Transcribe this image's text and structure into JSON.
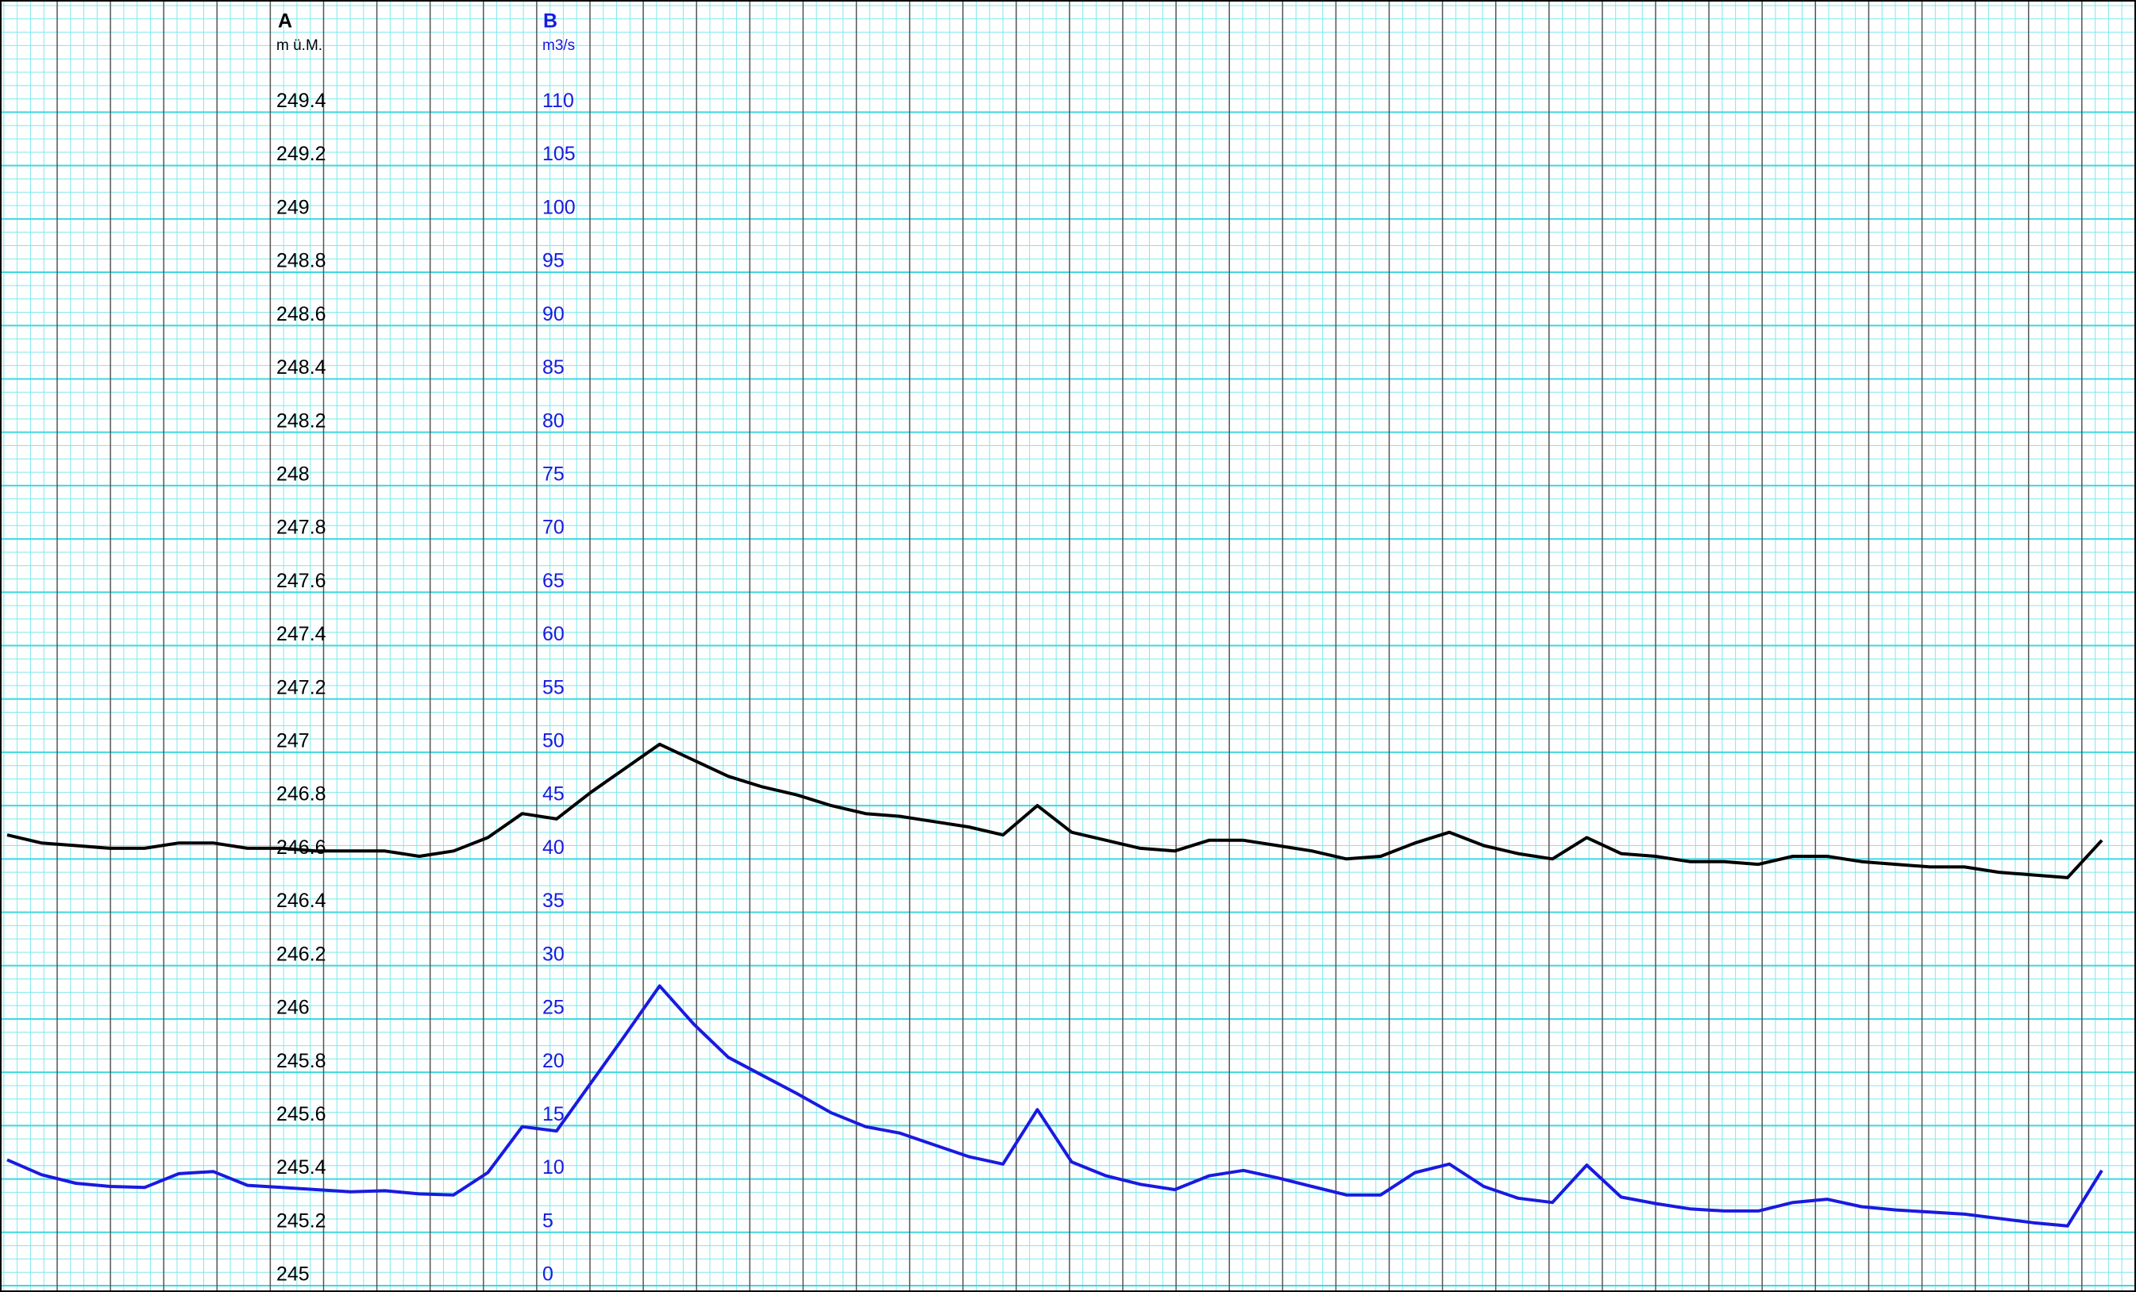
{
  "chart_data": {
    "type": "line",
    "ylabel": "m ü.M.",
    "y2label": "m3/s",
    "ylim": [
      245,
      249.8
    ],
    "yticks": [
      245,
      245.2,
      245.4,
      245.6,
      245.8,
      246,
      246.2,
      246.4,
      246.6,
      246.8,
      247,
      247.2,
      247.4,
      247.6,
      247.8,
      248,
      248.2,
      248.4,
      248.6,
      248.8,
      249,
      249.2,
      249.4
    ],
    "y2lim": [
      0,
      120
    ],
    "y2ticks": [
      0,
      5,
      10,
      15,
      20,
      25,
      30,
      35,
      40,
      45,
      50,
      55,
      60,
      65,
      70,
      75,
      80,
      85,
      90,
      95,
      100,
      105,
      110
    ],
    "grid": true,
    "series": [
      {
        "name": "A",
        "color": "#000000",
        "values": [
          246.69,
          246.66,
          246.65,
          246.64,
          246.64,
          246.66,
          246.66,
          246.64,
          246.64,
          246.63,
          246.63,
          246.63,
          246.61,
          246.63,
          246.68,
          246.77,
          246.75,
          246.85,
          246.94,
          247.03,
          246.97,
          246.91,
          246.87,
          246.84,
          246.8,
          246.77,
          246.76,
          246.74,
          246.72,
          246.69,
          246.8,
          246.7,
          246.67,
          246.64,
          246.63,
          246.67,
          246.67,
          246.65,
          246.63,
          246.6,
          246.61,
          246.66,
          246.7,
          246.65,
          246.62,
          246.6,
          246.68,
          246.62,
          246.61,
          246.59,
          246.59,
          246.58,
          246.61,
          246.61,
          246.59,
          246.58,
          246.57,
          246.57,
          246.55,
          246.54,
          246.53,
          246.67
        ]
      },
      {
        "name": "B",
        "color": "#1a1ae0",
        "axis": "y2",
        "values": [
          11.8,
          10.4,
          9.6,
          9.3,
          9.2,
          10.5,
          10.7,
          9.4,
          9.2,
          9.0,
          8.8,
          8.9,
          8.6,
          8.5,
          10.6,
          14.9,
          14.5,
          19,
          23.5,
          28.1,
          24.5,
          21.4,
          19.7,
          18,
          16.2,
          14.9,
          14.3,
          13.2,
          12.1,
          11.4,
          16.5,
          11.6,
          10.3,
          9.5,
          9.0,
          10.3,
          10.8,
          10.1,
          9.3,
          8.5,
          8.5,
          10.6,
          11.4,
          9.3,
          8.2,
          7.8,
          11.3,
          8.3,
          7.7,
          7.2,
          7.0,
          7.0,
          7.8,
          8.1,
          7.4,
          7.1,
          6.9,
          6.7,
          6.3,
          5.9,
          5.6,
          10.8
        ]
      }
    ]
  }
}
